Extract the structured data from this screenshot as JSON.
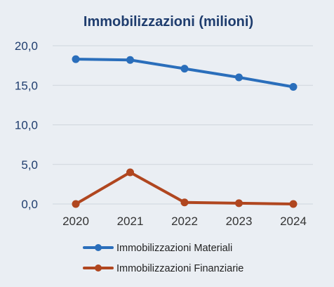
{
  "chart_data": {
    "type": "line",
    "title": "Immobilizzazioni (milioni)",
    "categories": [
      "2020",
      "2021",
      "2022",
      "2023",
      "2024"
    ],
    "y_ticks": [
      "0,0",
      "5,0",
      "10,0",
      "15,0",
      "20,0"
    ],
    "ylim": [
      0,
      20
    ],
    "grid": true,
    "legend_position": "bottom",
    "series": [
      {
        "name": "Immobilizzazioni Materiali",
        "values": [
          18.3,
          18.2,
          17.1,
          16.0,
          14.8
        ],
        "color": "#2a6ebb"
      },
      {
        "name": "Immobilizzazioni Finanziarie",
        "values": [
          0.0,
          4.0,
          0.2,
          0.1,
          0.0
        ],
        "color": "#b0461f"
      }
    ],
    "colors": {
      "text": "#1f3d6e",
      "grid": "#cfd5dd",
      "background": "#eaeef3"
    }
  }
}
